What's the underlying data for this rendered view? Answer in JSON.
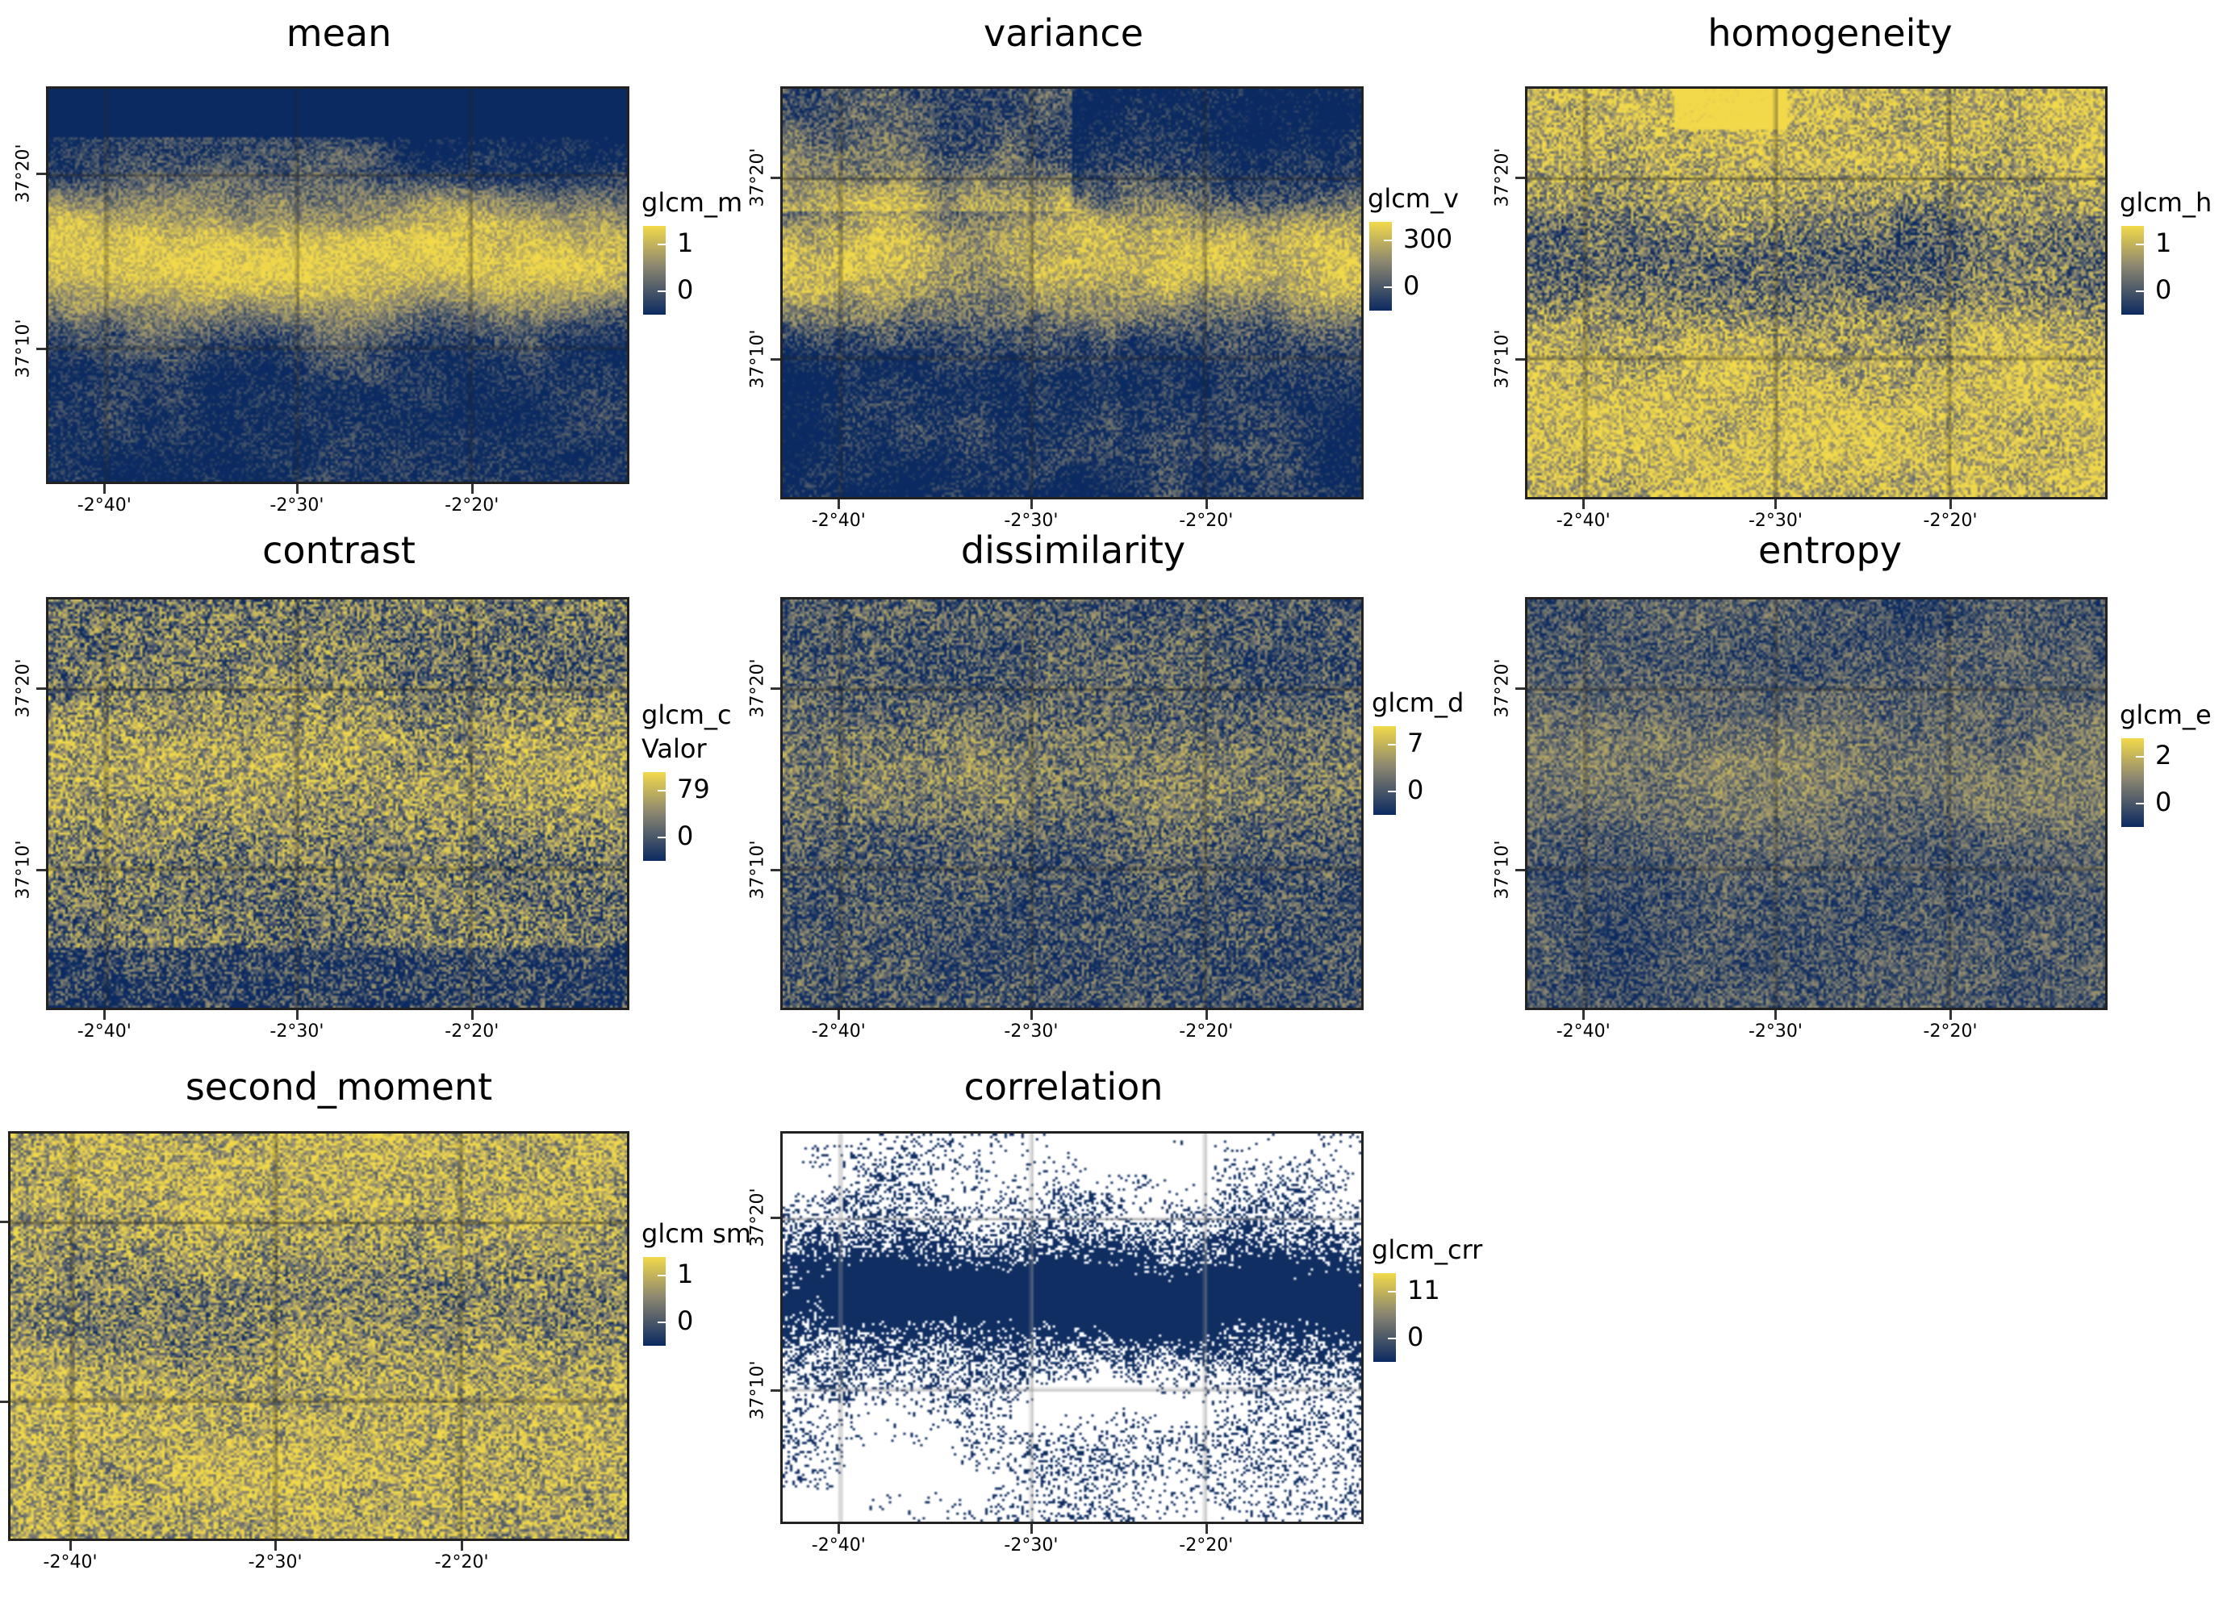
{
  "panels": [
    {
      "title": "mean",
      "legend_title": "glcm_m",
      "legend_subtitle": "",
      "max": "1",
      "min": "0",
      "kind": "mean"
    },
    {
      "title": "variance",
      "legend_title": "glcm_v",
      "legend_subtitle": "",
      "max": "300",
      "min": "0",
      "kind": "variance"
    },
    {
      "title": "homogeneity",
      "legend_title": "glcm_h",
      "legend_subtitle": "",
      "max": "1",
      "min": "0",
      "kind": "homog"
    },
    {
      "title": "contrast",
      "legend_title": "glcm_c",
      "legend_subtitle": "Valor",
      "max": "79",
      "min": "0",
      "kind": "contrast"
    },
    {
      "title": "dissimilarity",
      "legend_title": "glcm_d",
      "legend_subtitle": "",
      "max": "7",
      "min": "0",
      "kind": "dissim"
    },
    {
      "title": "entropy",
      "legend_title": "glcm_e",
      "legend_subtitle": "",
      "max": "2",
      "min": "0",
      "kind": "entropy"
    },
    {
      "title": "second_moment",
      "legend_title": "glcm sm",
      "legend_subtitle": "",
      "max": "1",
      "min": "0",
      "kind": "sm"
    },
    {
      "title": "correlation",
      "legend_title": "glcm_crr",
      "legend_subtitle": "",
      "max": "11",
      "min": "0",
      "kind": "corr"
    }
  ],
  "x_ticks": [
    "-2°40'",
    "-2°30'",
    "-2°20'"
  ],
  "y_ticks": [
    "37°20'",
    "37°10'"
  ],
  "colors": {
    "low": "#0b2a61",
    "mid": "#8c8770",
    "high": "#f2d94a",
    "null": "#ffffff"
  }
}
